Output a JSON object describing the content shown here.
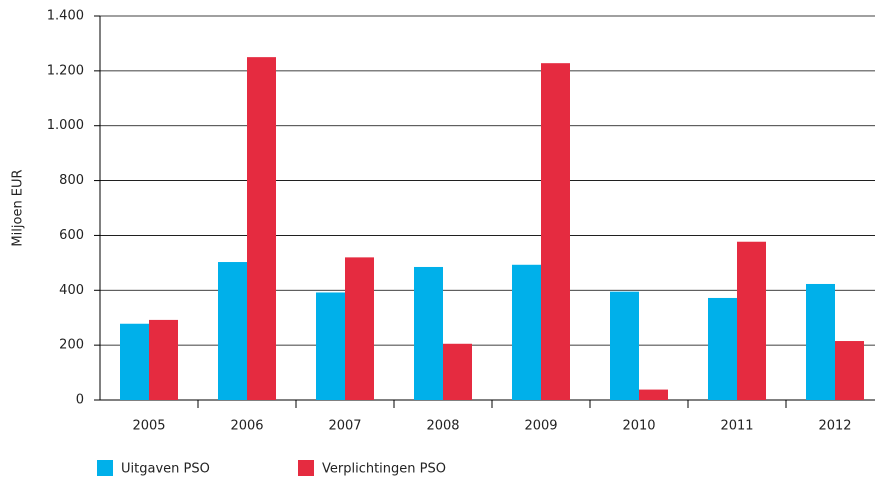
{
  "chart_data": {
    "type": "bar",
    "y_label": "Miljoen EUR",
    "categories": [
      "2005",
      "2006",
      "2007",
      "2008",
      "2009",
      "2010",
      "2011",
      "2012"
    ],
    "series": [
      {
        "name": "Uitgaven PSO",
        "color": "#00b0ea",
        "values": [
          278,
          503,
          392,
          485,
          493,
          395,
          372,
          423
        ]
      },
      {
        "name": "Verplichtingen PSO",
        "color": "#e52b40",
        "values": [
          292,
          1250,
          520,
          205,
          1228,
          38,
          577,
          215
        ]
      }
    ],
    "ylim": [
      0,
      1400
    ],
    "yticks": [
      0,
      200,
      400,
      600,
      800,
      {
        "value": 1000,
        "label": "1.000"
      },
      {
        "value": 1200,
        "label": "1.200"
      },
      {
        "value": 1400,
        "label": "1.400"
      }
    ],
    "grid": true
  }
}
